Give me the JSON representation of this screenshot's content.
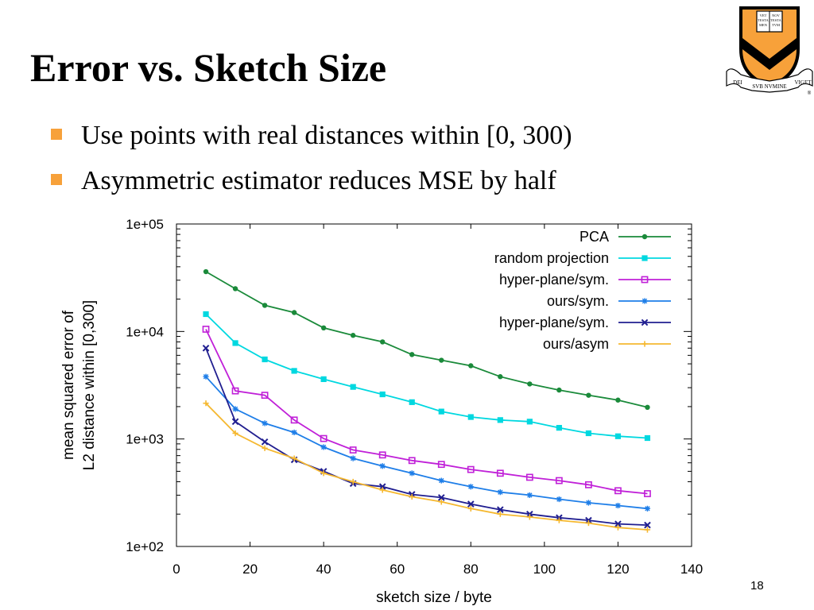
{
  "slide": {
    "title": "Error vs. Sketch Size",
    "bullets": [
      "Use points with real distances within [0, 300)",
      "Asymmetric estimator reduces MSE by half"
    ],
    "page_number": "18",
    "logo": {
      "name": "princeton-shield",
      "motto_left": "DEI",
      "motto_center": "SVB NVMINE",
      "motto_right": "VIGET",
      "book_text": [
        "VET",
        "NOV",
        "TESTA",
        "MEN",
        "TVM"
      ],
      "registered_mark": "®"
    },
    "accent_color": "#f7a13a"
  },
  "chart_data": {
    "type": "line",
    "xlabel": "sketch size / byte",
    "ylabel_lines": [
      "mean squared error of",
      "L2 distance within [0,300]"
    ],
    "xlim": [
      0,
      140
    ],
    "ylim": [
      100,
      100000
    ],
    "y_scale": "log",
    "x_ticks": [
      0,
      20,
      40,
      60,
      80,
      100,
      120,
      140
    ],
    "y_ticks": [
      "1e+02",
      "1e+03",
      "1e+04",
      "1e+05"
    ],
    "y_tick_values": [
      100,
      1000,
      10000,
      100000
    ],
    "legend_position": "top-right",
    "grid": false,
    "x": [
      8,
      16,
      24,
      32,
      40,
      48,
      56,
      64,
      72,
      80,
      88,
      96,
      104,
      112,
      120,
      128
    ],
    "series": [
      {
        "name": "PCA",
        "color": "#1a8a3a",
        "marker": "dot",
        "values": [
          36000,
          25000,
          17500,
          15000,
          10800,
          9200,
          8000,
          6100,
          5400,
          4800,
          3800,
          3250,
          2850,
          2550,
          2300,
          1970
        ]
      },
      {
        "name": "random projection",
        "color": "#00d8e0",
        "marker": "square-filled",
        "values": [
          14500,
          7800,
          5500,
          4300,
          3600,
          3050,
          2600,
          2200,
          1800,
          1600,
          1500,
          1450,
          1270,
          1130,
          1060,
          1020
        ]
      },
      {
        "name": "hyper-plane/sym.",
        "color": "#c020d8",
        "marker": "square-open",
        "values": [
          10500,
          2800,
          2550,
          1500,
          1010,
          790,
          710,
          630,
          580,
          520,
          480,
          440,
          410,
          375,
          330,
          310
        ]
      },
      {
        "name": "ours/sym.",
        "color": "#1e7ee8",
        "marker": "star",
        "values": [
          3800,
          1900,
          1400,
          1150,
          840,
          660,
          560,
          480,
          410,
          360,
          320,
          300,
          275,
          255,
          240,
          225
        ]
      },
      {
        "name": "hyper-plane/sym.",
        "color": "#201e90",
        "marker": "x",
        "values": [
          7000,
          1450,
          940,
          640,
          500,
          385,
          360,
          305,
          285,
          248,
          220,
          200,
          185,
          175,
          162,
          158
        ]
      },
      {
        "name": "ours/asym",
        "color": "#f5b830",
        "marker": "plus",
        "values": [
          2150,
          1130,
          820,
          660,
          480,
          400,
          335,
          290,
          260,
          225,
          200,
          188,
          175,
          165,
          150,
          143
        ]
      }
    ]
  }
}
